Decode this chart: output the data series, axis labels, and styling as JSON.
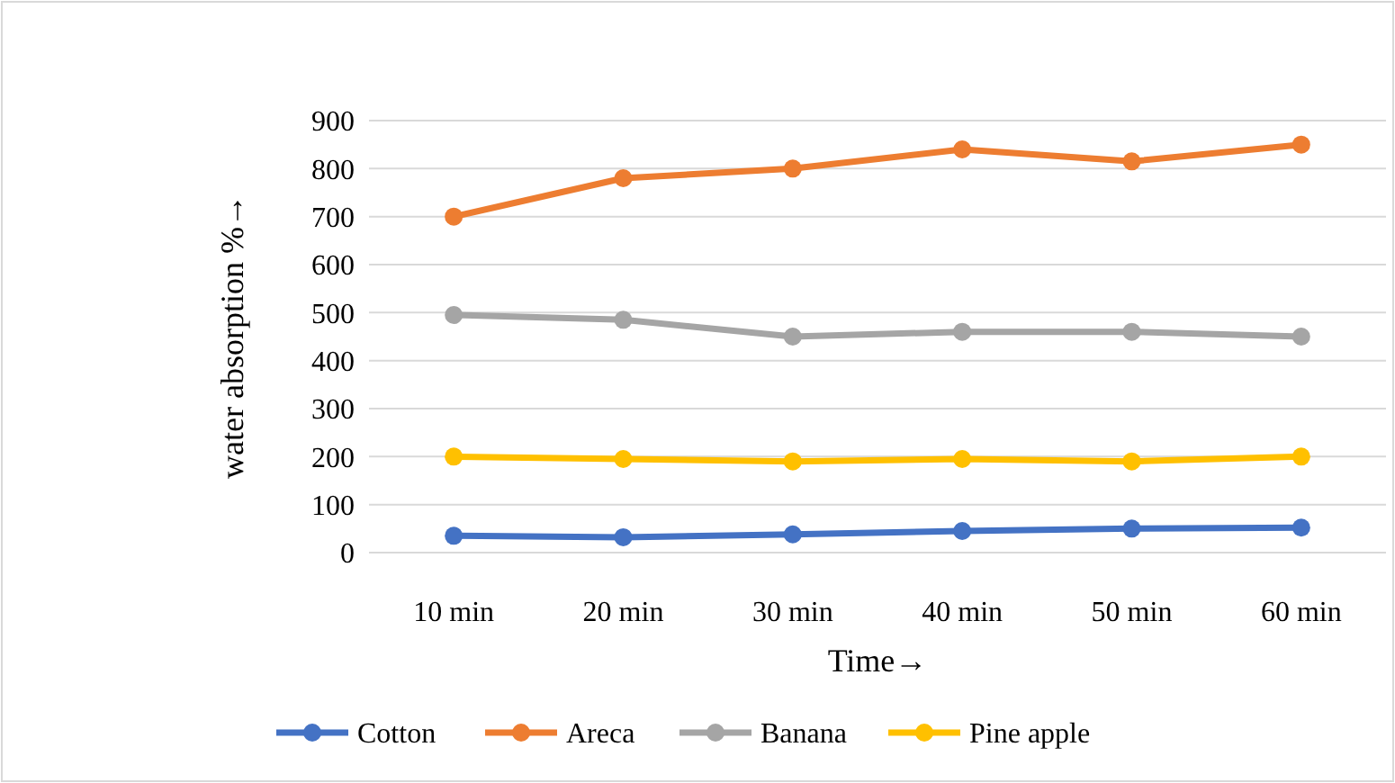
{
  "chart_data": {
    "type": "line",
    "xlabel": "Time→",
    "ylabel": "water absorption %→",
    "categories": [
      "10 min",
      "20 min",
      "30 min",
      "40 min",
      "50 min",
      "60 min"
    ],
    "series": [
      {
        "name": "Cotton",
        "color": "#4472c4",
        "values": [
          35,
          32,
          38,
          45,
          50,
          52
        ]
      },
      {
        "name": "Areca",
        "color": "#ed7d31",
        "values": [
          700,
          780,
          800,
          840,
          815,
          850
        ]
      },
      {
        "name": "Banana",
        "color": "#a5a5a5",
        "values": [
          495,
          485,
          450,
          460,
          460,
          450
        ]
      },
      {
        "name": "Pine apple",
        "color": "#ffc000",
        "values": [
          200,
          195,
          190,
          195,
          190,
          200
        ]
      }
    ],
    "ylim": [
      0,
      900
    ],
    "yticks": [
      0,
      100,
      200,
      300,
      400,
      500,
      600,
      700,
      800,
      900
    ],
    "grid": "y",
    "legend": "bottom",
    "marker": "circle",
    "line_style": "solid"
  }
}
